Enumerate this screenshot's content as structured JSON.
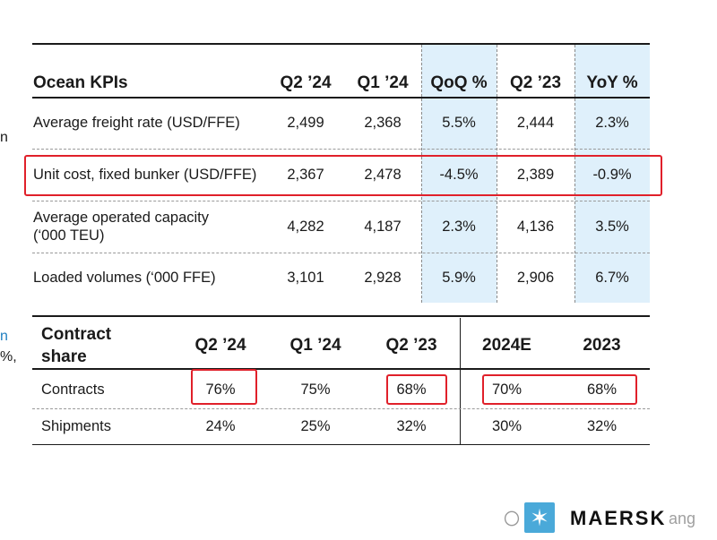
{
  "ocean": {
    "headers": [
      "Ocean KPIs",
      "Q2 ’24",
      "Q1 ’24",
      "QoQ %",
      "Q2 ’23",
      "YoY %"
    ],
    "rows": [
      {
        "label": "Average freight rate (USD/FFE)",
        "vals": [
          "2,499",
          "2,368",
          "5.5%",
          "2,444",
          "2.3%"
        ]
      },
      {
        "label": "Unit cost, fixed bunker (USD/FFE)",
        "vals": [
          "2,367",
          "2,478",
          "-4.5%",
          "2,389",
          "-0.9%"
        ]
      },
      {
        "label_l1": "Average operated capacity",
        "label_l2": "(‘000 TEU)",
        "vals": [
          "4,282",
          "4,187",
          "2.3%",
          "4,136",
          "3.5%"
        ]
      },
      {
        "label": "Loaded volumes (‘000 FFE)",
        "vals": [
          "3,101",
          "2,928",
          "5.9%",
          "2,906",
          "6.7%"
        ]
      }
    ]
  },
  "contract": {
    "title_l1": "Contract",
    "title_l2": "share",
    "headers": [
      "Q2 ’24",
      "Q1 ’24",
      "Q2 ’23",
      "2024E",
      "2023"
    ],
    "rows": [
      {
        "label": "Contracts",
        "vals": [
          "76%",
          "75%",
          "68%",
          "70%",
          "68%"
        ]
      },
      {
        "label": "Shipments",
        "vals": [
          "24%",
          "25%",
          "32%",
          "30%",
          "32%"
        ]
      }
    ]
  },
  "left_edge": {
    "a": "n",
    "b": "n",
    "c": "%,"
  },
  "logo": {
    "text": "MAERSK",
    "star": "✶"
  },
  "watermark": {
    "prefix": "〇",
    "suffix": "ang"
  },
  "colors": {
    "highlight_col": "#dff0fb",
    "red_box": "#e0202a",
    "logo_blue": "#4aa9d9"
  }
}
